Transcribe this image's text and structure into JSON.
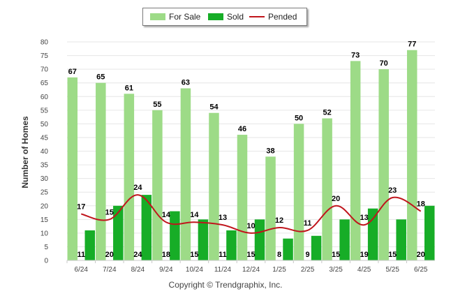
{
  "chart_data": {
    "type": "bar",
    "ylabel": "Number of Homes",
    "ylim": [
      0,
      80
    ],
    "yticks": [
      0,
      5,
      10,
      15,
      20,
      25,
      30,
      35,
      40,
      45,
      50,
      55,
      60,
      65,
      70,
      75,
      80
    ],
    "categories": [
      "6/24",
      "7/24",
      "8/24",
      "9/24",
      "10/24",
      "11/24",
      "12/24",
      "1/25",
      "2/25",
      "3/25",
      "4/25",
      "5/25",
      "6/25"
    ],
    "series": [
      {
        "name": "For Sale",
        "kind": "bar",
        "color": "#9ddb87",
        "values": [
          67,
          65,
          61,
          55,
          63,
          54,
          46,
          38,
          50,
          52,
          73,
          70,
          77
        ]
      },
      {
        "name": "Sold",
        "kind": "bar",
        "color": "#17ad27",
        "values": [
          11,
          20,
          24,
          18,
          15,
          11,
          15,
          8,
          9,
          15,
          19,
          15,
          20
        ]
      },
      {
        "name": "Pended",
        "kind": "line",
        "color": "#c0151c",
        "values": [
          17,
          15,
          24,
          14,
          14,
          13,
          10,
          12,
          11,
          20,
          13,
          23,
          18
        ]
      }
    ],
    "grid": true,
    "legend_position": "top-center"
  },
  "legend": {
    "for_sale": "For Sale",
    "sold": "Sold",
    "pended": "Pended"
  },
  "footer": {
    "copyright": "Copyright © Trendgraphix, Inc."
  }
}
